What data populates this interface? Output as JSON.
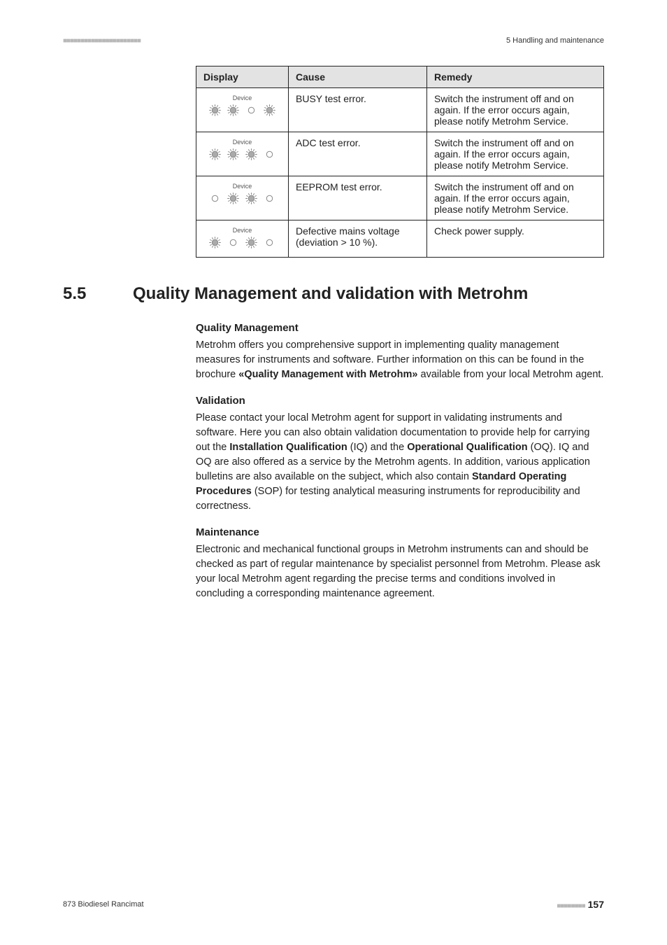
{
  "header": {
    "dash_marks": "■■■■■■■■■■■■■■■■■■■■■■",
    "right_text": "5 Handling and maintenance"
  },
  "table": {
    "headers": {
      "col1": "Display",
      "col2": "Cause",
      "col3": "Remedy"
    },
    "rows": [
      {
        "device_label": "Device",
        "leds": [
          "on",
          "on",
          "off",
          "on"
        ],
        "cause": "BUSY test error.",
        "remedy": "Switch the instrument off and on again. If the error occurs again, please notify Metrohm Service."
      },
      {
        "device_label": "Device",
        "leds": [
          "on",
          "on",
          "on",
          "off"
        ],
        "cause": "ADC test error.",
        "remedy": "Switch the instrument off and on again. If the error occurs again, please notify Metrohm Service."
      },
      {
        "device_label": "Device",
        "leds": [
          "off",
          "on",
          "on",
          "off"
        ],
        "cause": "EEPROM test error.",
        "remedy": "Switch the instrument off and on again. If the error occurs again, please notify Metrohm Service."
      },
      {
        "device_label": "Device",
        "leds": [
          "on",
          "off",
          "on",
          "off"
        ],
        "cause": "Defective mains voltage (deviation > 10 %).",
        "remedy": "Check power supply."
      }
    ],
    "led_colors": {
      "on_fill": "#aaaaaa",
      "on_stroke": "#888888",
      "off_fill": "none",
      "off_stroke": "#888888",
      "ray_stroke": "#888888"
    }
  },
  "section": {
    "number": "5.5",
    "title": "Quality Management and validation with Metrohm",
    "blocks": [
      {
        "heading": "Quality Management",
        "body_pre": "Metrohm offers you comprehensive support in implementing quality management measures for instruments and software. Further information on this can be found in the brochure ",
        "body_bold1": "«Quality Management with Metrohm»",
        "body_post": " available from your local Metrohm agent."
      },
      {
        "heading": "Validation",
        "body_pre": "Please contact your local Metrohm agent for support in validating instruments and software. Here you can also obtain validation documentation to provide help for carrying out the ",
        "body_bold1": "Installation Qualification",
        "body_mid1": " (IQ) and the ",
        "body_bold2": "Operational Qualification",
        "body_mid2": " (OQ). IQ and OQ are also offered as a service by the Metrohm agents. In addition, various application bulletins are also available on the subject, which also contain ",
        "body_bold3": "Standard Operating Procedures",
        "body_post": " (SOP) for testing analytical measuring instruments for reproducibility and correctness."
      },
      {
        "heading": "Maintenance",
        "body_pre": "Electronic and mechanical functional groups in Metrohm instruments can and should be checked as part of regular maintenance by specialist personnel from Metrohm. Please ask your local Metrohm agent regarding the precise terms and conditions involved in concluding a corresponding maintenance agreement."
      }
    ]
  },
  "footer": {
    "left": "873 Biodiesel Rancimat",
    "dash_marks": "■■■■■■■■",
    "page": "157"
  }
}
